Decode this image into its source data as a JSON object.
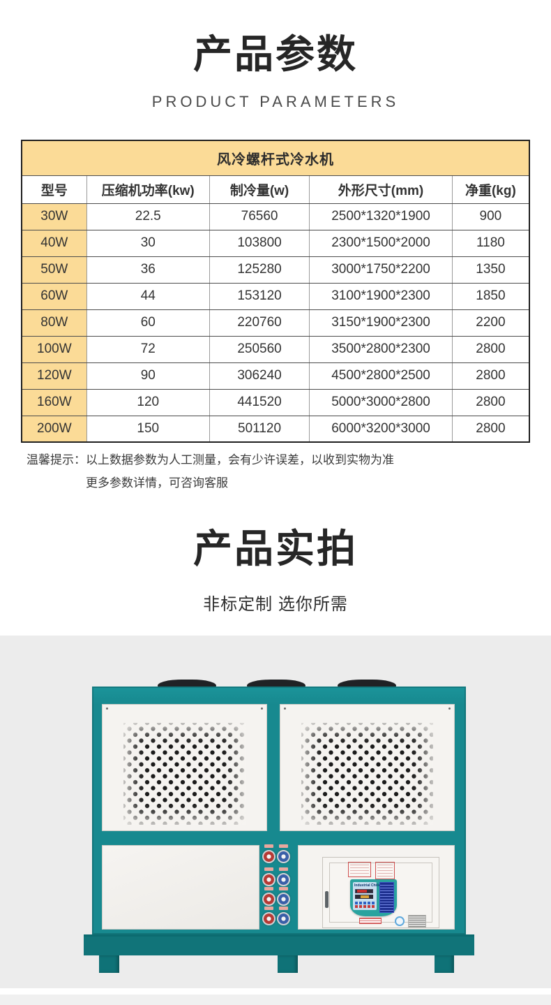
{
  "section_parameters": {
    "title": "产品参数",
    "subtitle": "PRODUCT PARAMETERS"
  },
  "table": {
    "caption": "风冷螺杆式冷水机",
    "columns": [
      "型号",
      "压缩机功率(kw)",
      "制冷量(w)",
      "外形尺寸(mm)",
      "净重(kg)"
    ],
    "rows": [
      [
        "30W",
        "22.5",
        "76560",
        "2500*1320*1900",
        "900"
      ],
      [
        "40W",
        "30",
        "103800",
        "2300*1500*2000",
        "1180"
      ],
      [
        "50W",
        "36",
        "125280",
        "3000*1750*2200",
        "1350"
      ],
      [
        "60W",
        "44",
        "153120",
        "3100*1900*2300",
        "1850"
      ],
      [
        "80W",
        "60",
        "220760",
        "3150*1900*2300",
        "2200"
      ],
      [
        "100W",
        "72",
        "250560",
        "3500*2800*2300",
        "2800"
      ],
      [
        "120W",
        "90",
        "306240",
        "4500*2800*2500",
        "2800"
      ],
      [
        "160W",
        "120",
        "441520",
        "5000*3000*2800",
        "2800"
      ],
      [
        "200W",
        "150",
        "501120",
        "6000*3200*3000",
        "2800"
      ]
    ]
  },
  "note": {
    "label": "温馨提示：",
    "line1": "以上数据参数为人工测量，会有少许误差，以收到实物为准",
    "line2": "更多参数详情，可咨询客服"
  },
  "section_photos": {
    "title": "产品实拍",
    "subtitle": "非标定制 选你所需"
  },
  "machine": {
    "display_title": "Industrial Chiller"
  },
  "colors": {
    "table_header_bg": "#fbdb97",
    "table_border_dark": "#1f1f1f",
    "machine_teal": "#17898f",
    "photo_background": "#ececec",
    "gauge_red": "#b63a35",
    "gauge_blue": "#3a5fa8"
  }
}
